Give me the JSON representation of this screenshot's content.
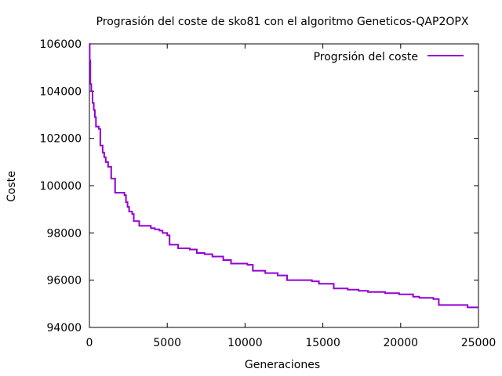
{
  "chart_data": {
    "type": "line",
    "title": "Prograsión del coste de sko81 con el algoritmo Geneticos-QAP2OPX",
    "xlabel": "Generaciones",
    "ylabel": "Coste",
    "xlim": [
      0,
      25000
    ],
    "ylim": [
      94000,
      106000
    ],
    "x_ticks": [
      0,
      5000,
      10000,
      15000,
      20000,
      25000
    ],
    "y_ticks": [
      94000,
      96000,
      98000,
      100000,
      102000,
      104000,
      106000
    ],
    "grid": false,
    "legend_position": "top-right",
    "step": true,
    "series": [
      {
        "name": "Progrsión del coste",
        "color": "#9400d3",
        "points": [
          [
            0,
            106000
          ],
          [
            20,
            105300
          ],
          [
            60,
            104300
          ],
          [
            120,
            104000
          ],
          [
            200,
            103500
          ],
          [
            280,
            103200
          ],
          [
            350,
            102900
          ],
          [
            420,
            102500
          ],
          [
            600,
            102400
          ],
          [
            700,
            101700
          ],
          [
            850,
            101400
          ],
          [
            950,
            101200
          ],
          [
            1050,
            101000
          ],
          [
            1200,
            100800
          ],
          [
            1400,
            100300
          ],
          [
            1650,
            99700
          ],
          [
            2250,
            99600
          ],
          [
            2350,
            99300
          ],
          [
            2450,
            99100
          ],
          [
            2550,
            98900
          ],
          [
            2750,
            98800
          ],
          [
            2850,
            98500
          ],
          [
            3200,
            98300
          ],
          [
            3950,
            98200
          ],
          [
            4200,
            98150
          ],
          [
            4500,
            98100
          ],
          [
            4700,
            98000
          ],
          [
            5000,
            97900
          ],
          [
            5150,
            97500
          ],
          [
            5700,
            97350
          ],
          [
            6450,
            97300
          ],
          [
            6900,
            97150
          ],
          [
            7400,
            97100
          ],
          [
            7900,
            97000
          ],
          [
            8600,
            96850
          ],
          [
            9100,
            96700
          ],
          [
            10150,
            96650
          ],
          [
            10500,
            96400
          ],
          [
            11300,
            96300
          ],
          [
            12100,
            96200
          ],
          [
            12700,
            96000
          ],
          [
            14300,
            95950
          ],
          [
            14750,
            95850
          ],
          [
            15700,
            95650
          ],
          [
            16600,
            95600
          ],
          [
            17300,
            95550
          ],
          [
            17900,
            95500
          ],
          [
            19000,
            95450
          ],
          [
            19900,
            95400
          ],
          [
            20800,
            95300
          ],
          [
            21200,
            95250
          ],
          [
            22100,
            95200
          ],
          [
            22450,
            94950
          ],
          [
            24300,
            94850
          ],
          [
            25000,
            94850
          ]
        ]
      }
    ]
  }
}
